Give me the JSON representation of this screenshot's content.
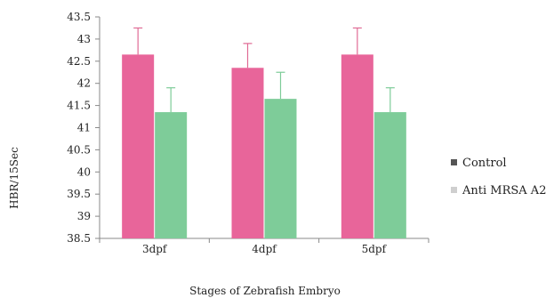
{
  "chart_data": {
    "type": "bar",
    "xlabel": "Stages of Zebrafish Embryo",
    "ylabel": "HBR/15Sec",
    "categories": [
      "3dpf",
      "4dpf",
      "5dpf"
    ],
    "series": [
      {
        "name": "Control",
        "values": [
          42.65,
          42.35,
          42.65
        ],
        "errors": [
          0.6,
          0.55,
          0.6
        ]
      },
      {
        "name": "Anti MRSA A2",
        "values": [
          41.35,
          41.65,
          41.35
        ],
        "errors": [
          0.55,
          0.6,
          0.55
        ]
      }
    ],
    "ylim": [
      38.5,
      43.5
    ],
    "yticks": [
      "38.5",
      "39",
      "39.5",
      "40",
      "40.5",
      "41",
      "41.5",
      "42",
      "42.5",
      "43",
      "43.5"
    ],
    "grid": false,
    "legend_position": "right"
  },
  "colors": {
    "control_bar": "#e8659a",
    "control_error": "#e06b95",
    "anti_bar": "#7ecc99",
    "anti_error": "#7ecc99",
    "control_legend_marker": "#555555",
    "anti_legend_marker": "#cfcfcf",
    "axis": "#888888"
  }
}
